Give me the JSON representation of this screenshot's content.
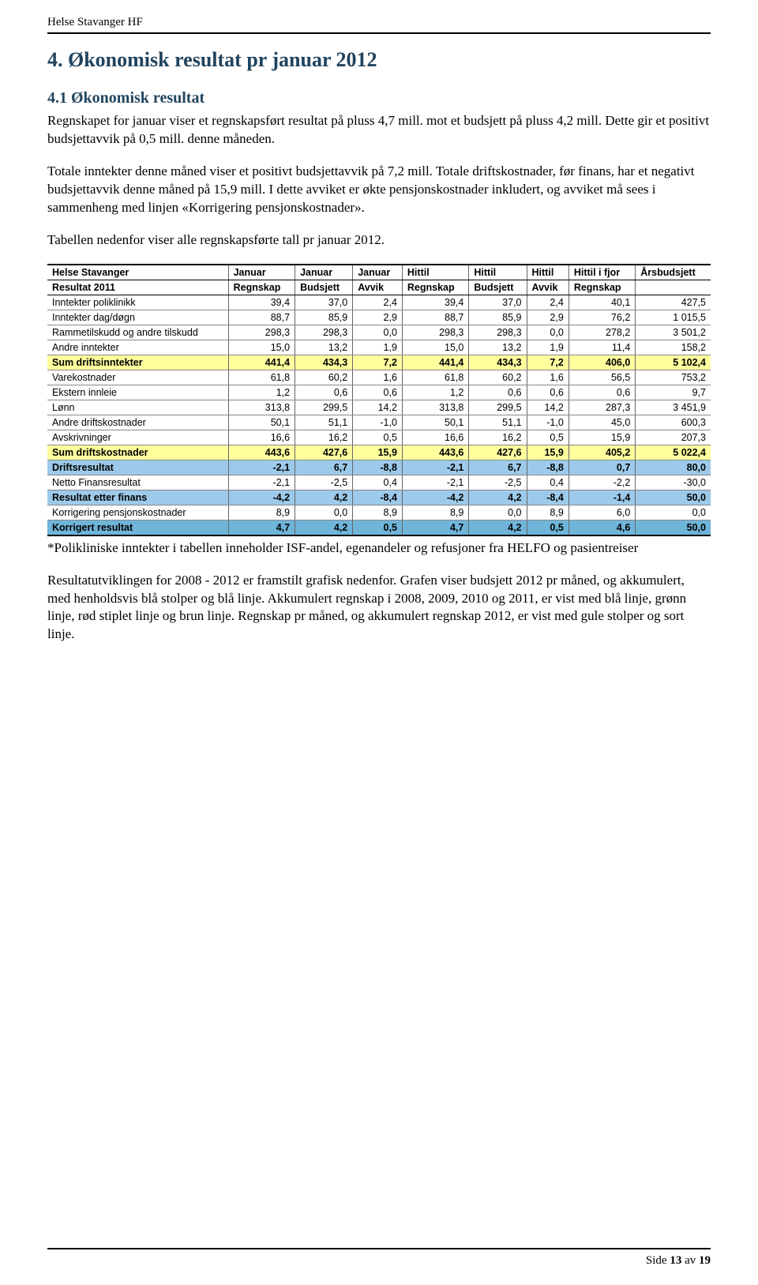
{
  "header": {
    "org": "Helse Stavanger HF"
  },
  "section": {
    "title": "4. Økonomisk resultat pr januar 2012",
    "subsection_title": "4.1 Økonomisk resultat",
    "para1": "Regnskapet for januar viser et regnskapsført resultat på pluss 4,7 mill. mot et budsjett på pluss 4,2 mill. Dette gir et positivt budsjettavvik på 0,5 mill. denne måneden.",
    "para2": "Totale inntekter denne måned viser et positivt budsjettavvik på 7,2 mill. Totale driftskostnader, før finans, har et negativt budsjettavvik denne måned på 15,9 mill. I dette avviket er økte pensjonskostnader inkludert, og avviket må sees i sammenheng med linjen «Korrigering pensjonskostnader».",
    "para3": "Tabellen nedenfor viser alle regnskapsførte tall pr januar 2012.",
    "footnote": "*Polikliniske inntekter i tabellen inneholder ISF-andel, egenandeler og refusjoner fra HELFO og pasientreiser",
    "para4": "Resultatutviklingen for 2008 - 2012 er framstilt grafisk nedenfor. Grafen viser budsjett 2012 pr måned, og akkumulert, med henholdsvis blå stolper og blå linje. Akkumulert regnskap i 2008, 2009, 2010 og 2011, er vist med blå linje, grønn linje, rød stiplet linje og brun linje. Regnskap pr måned, og akkumulert regnskap 2012, er vist med gule stolper og sort linje."
  },
  "table": {
    "header_line1": [
      "Helse Stavanger",
      "Januar",
      "Januar",
      "Januar",
      "Hittil",
      "Hittil",
      "Hittil",
      "Hittil i fjor",
      "Årsbudsjett"
    ],
    "header_line2": [
      "Resultat 2011",
      "Regnskap",
      "Budsjett",
      "Avvik",
      "Regnskap",
      "Budsjett",
      "Avvik",
      "Regnskap",
      ""
    ],
    "colors": {
      "yellow": "#ffff9e",
      "blue_light": "#9dcaea",
      "blue_dark": "#6fb4d9",
      "row_border": "#888888"
    },
    "rows": [
      {
        "label": "Inntekter poliklinikk",
        "cells": [
          "39,4",
          "37,0",
          "2,4",
          "39,4",
          "37,0",
          "2,4",
          "40,1",
          "427,5"
        ],
        "style": "normal"
      },
      {
        "label": "Inntekter dag/døgn",
        "cells": [
          "88,7",
          "85,9",
          "2,9",
          "88,7",
          "85,9",
          "2,9",
          "76,2",
          "1 015,5"
        ],
        "style": "normal"
      },
      {
        "label": "Rammetilskudd og andre tilskudd",
        "cells": [
          "298,3",
          "298,3",
          "0,0",
          "298,3",
          "298,3",
          "0,0",
          "278,2",
          "3 501,2"
        ],
        "style": "normal"
      },
      {
        "label": "Andre inntekter",
        "cells": [
          "15,0",
          "13,2",
          "1,9",
          "15,0",
          "13,2",
          "1,9",
          "11,4",
          "158,2"
        ],
        "style": "normal"
      },
      {
        "label": "Sum driftsinntekter",
        "cells": [
          "441,4",
          "434,3",
          "7,2",
          "441,4",
          "434,3",
          "7,2",
          "406,0",
          "5 102,4"
        ],
        "style": "yellow"
      },
      {
        "label": "Varekostnader",
        "cells": [
          "61,8",
          "60,2",
          "1,6",
          "61,8",
          "60,2",
          "1,6",
          "56,5",
          "753,2"
        ],
        "style": "normal"
      },
      {
        "label": "Ekstern innleie",
        "cells": [
          "1,2",
          "0,6",
          "0,6",
          "1,2",
          "0,6",
          "0,6",
          "0,6",
          "9,7"
        ],
        "style": "normal"
      },
      {
        "label": "Lønn",
        "cells": [
          "313,8",
          "299,5",
          "14,2",
          "313,8",
          "299,5",
          "14,2",
          "287,3",
          "3 451,9"
        ],
        "style": "normal"
      },
      {
        "label": "Andre driftskostnader",
        "cells": [
          "50,1",
          "51,1",
          "-1,0",
          "50,1",
          "51,1",
          "-1,0",
          "45,0",
          "600,3"
        ],
        "style": "normal"
      },
      {
        "label": "Avskrivninger",
        "cells": [
          "16,6",
          "16,2",
          "0,5",
          "16,6",
          "16,2",
          "0,5",
          "15,9",
          "207,3"
        ],
        "style": "normal"
      },
      {
        "label": "Sum driftskostnader",
        "cells": [
          "443,6",
          "427,6",
          "15,9",
          "443,6",
          "427,6",
          "15,9",
          "405,2",
          "5 022,4"
        ],
        "style": "yellow"
      },
      {
        "label": "Driftsresultat",
        "cells": [
          "-2,1",
          "6,7",
          "-8,8",
          "-2,1",
          "6,7",
          "-8,8",
          "0,7",
          "80,0"
        ],
        "style": "blue_light"
      },
      {
        "label": "Netto Finansresultat",
        "cells": [
          "-2,1",
          "-2,5",
          "0,4",
          "-2,1",
          "-2,5",
          "0,4",
          "-2,2",
          "-30,0"
        ],
        "style": "normal"
      },
      {
        "label": "Resultat etter finans",
        "cells": [
          "-4,2",
          "4,2",
          "-8,4",
          "-4,2",
          "4,2",
          "-8,4",
          "-1,4",
          "50,0"
        ],
        "style": "blue_light"
      },
      {
        "label": "Korrigering pensjonskostnader",
        "cells": [
          "8,9",
          "0,0",
          "8,9",
          "8,9",
          "0,0",
          "8,9",
          "6,0",
          "0,0"
        ],
        "style": "normal"
      },
      {
        "label": "Korrigert resultat",
        "cells": [
          "4,7",
          "4,2",
          "0,5",
          "4,7",
          "4,2",
          "0,5",
          "4,6",
          "50,0"
        ],
        "style": "blue_dark_final"
      }
    ]
  },
  "footer": {
    "prefix": "Side ",
    "page_current": "13",
    "page_sep": " av ",
    "page_total": "19"
  }
}
